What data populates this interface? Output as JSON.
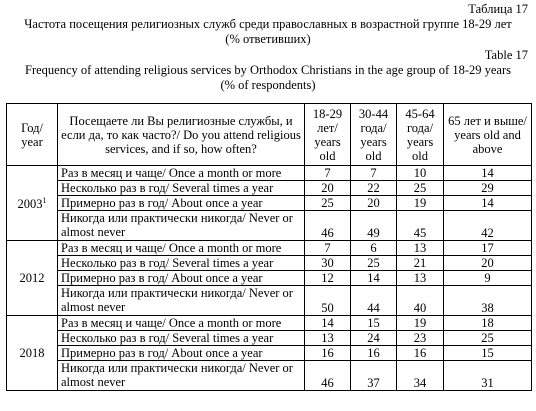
{
  "header": {
    "table_label_ru": "Таблица 17",
    "title_ru_1": "Частота посещения религиозных служб среди православных в возрастной группе 18-29 лет",
    "title_ru_2": "(% ответивших)",
    "table_label_en": "Table 17",
    "title_en_1": "Frequency of attending religious services by Orthodox Christians in the age group of 18-29 years",
    "title_en_2": "(% of respondents)"
  },
  "table": {
    "columns": [
      "Год/ year",
      "Посещаете ли Вы религиозные службы, и если да, то как часто?/ Do you attend religious services, and if so, how often?",
      "18-29 лет/ years old",
      "30-44 года/ years old",
      "45-64 года/ years old",
      "65 лет и выше/ years old and above"
    ],
    "groups": [
      {
        "year": "2003",
        "note": "1",
        "rows": [
          {
            "label": "Раз в месяц и чаще/ Once a month or more",
            "values": [
              7,
              7,
              10,
              14
            ]
          },
          {
            "label": "Несколько раз в год/ Several times a year",
            "values": [
              20,
              22,
              25,
              29
            ]
          },
          {
            "label": "Примерно раз в год/ About once a year",
            "values": [
              25,
              20,
              19,
              14
            ]
          },
          {
            "label": "Никогда или практически никогда/ Never or almost never",
            "values": [
              46,
              49,
              45,
              42
            ]
          }
        ]
      },
      {
        "year": "2012",
        "rows": [
          {
            "label": "Раз в месяц и чаще/ Once a month or more",
            "values": [
              7,
              6,
              13,
              17
            ]
          },
          {
            "label": "Несколько раз в год/ Several times a year",
            "values": [
              30,
              25,
              21,
              20
            ]
          },
          {
            "label": "Примерно раз в год/ About once a year",
            "values": [
              12,
              14,
              13,
              9
            ]
          },
          {
            "label": "Никогда или практически никогда/ Never or almost never",
            "values": [
              50,
              44,
              40,
              38
            ]
          }
        ]
      },
      {
        "year": "2018",
        "rows": [
          {
            "label": "Раз в месяц и чаще/ Once a month or more",
            "values": [
              14,
              15,
              19,
              18
            ]
          },
          {
            "label": "Несколько раз в год/ Several times a year",
            "values": [
              13,
              24,
              23,
              25
            ]
          },
          {
            "label": "Примерно раз в год/ About once a year",
            "values": [
              16,
              16,
              16,
              15
            ]
          },
          {
            "label": "Никогда или практически никогда/ Never or almost never",
            "values": [
              46,
              37,
              34,
              31
            ]
          }
        ]
      }
    ]
  }
}
